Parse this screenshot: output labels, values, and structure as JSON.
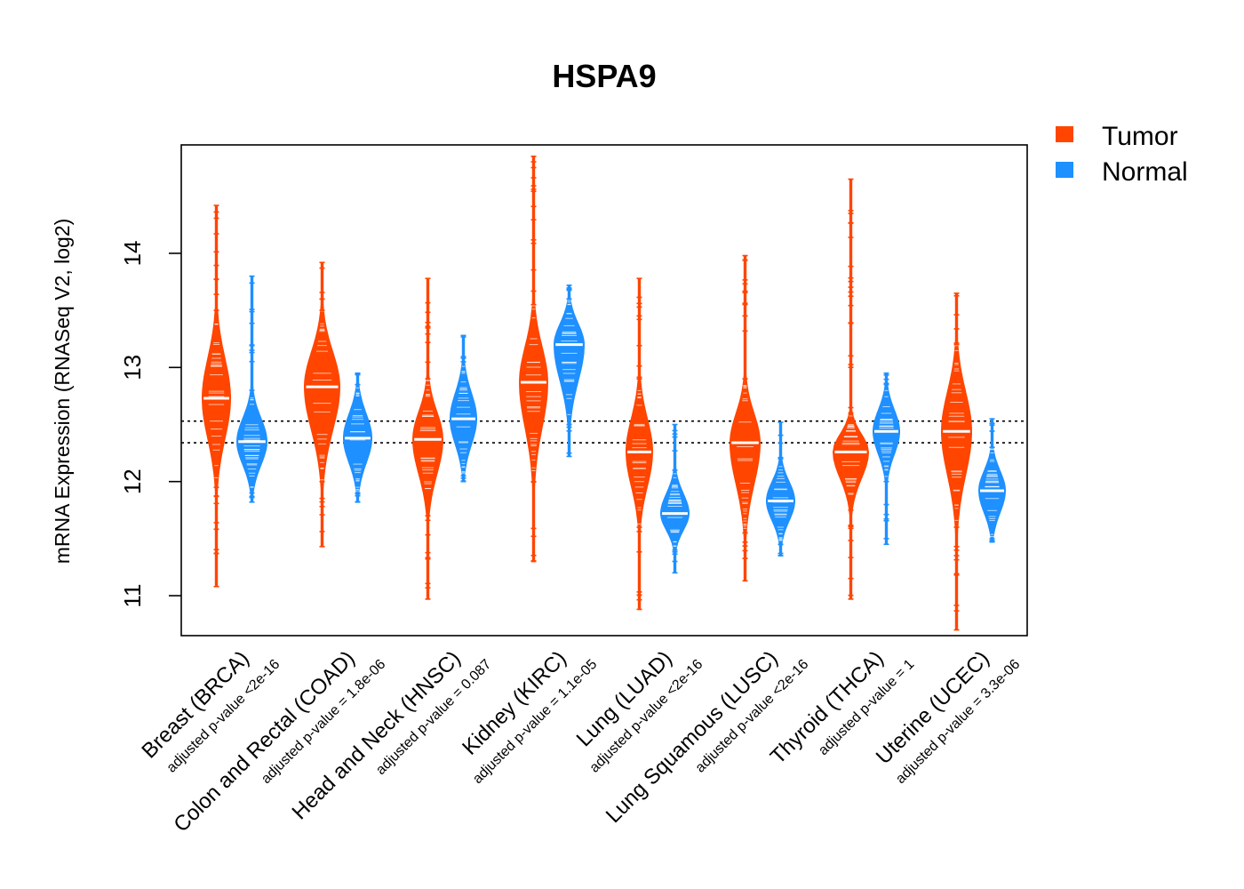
{
  "chart_data": {
    "type": "violin",
    "title": "HSPA9",
    "ylabel": "mRNA Expression (RNASeq V2, log2)",
    "xlabel": "",
    "ylim": [
      10.65,
      14.95
    ],
    "yticks": [
      11,
      12,
      13,
      14
    ],
    "reference_lines": [
      12.34,
      12.53
    ],
    "legend": {
      "position": "top-right",
      "entries": [
        {
          "name": "Tumor",
          "color": "#FF4500"
        },
        {
          "name": "Normal",
          "color": "#1E90FF"
        }
      ]
    },
    "groups": [
      {
        "label": "Breast (BRCA)",
        "pvalue": "adjusted p-value <2e-16",
        "tumor": {
          "median": 12.73,
          "bulk": [
            11.95,
            13.5
          ],
          "range": [
            11.08,
            14.42
          ],
          "width": 0.8
        },
        "normal": {
          "median": 12.35,
          "bulk": [
            11.9,
            12.8
          ],
          "range": [
            11.82,
            13.8
          ],
          "width": 0.85
        }
      },
      {
        "label": "Colon and Rectal (COAD)",
        "pvalue": "adjusted p-value = 1.8e-06",
        "tumor": {
          "median": 12.83,
          "bulk": [
            12.0,
            13.5
          ],
          "range": [
            11.43,
            13.92
          ],
          "width": 1.0
        },
        "normal": {
          "median": 12.38,
          "bulk": [
            11.9,
            12.85
          ],
          "range": [
            11.82,
            12.95
          ],
          "width": 0.8
        }
      },
      {
        "label": "Head and Neck (HNSC)",
        "pvalue": "adjusted p-value = 0.087",
        "tumor": {
          "median": 12.37,
          "bulk": [
            11.7,
            12.9
          ],
          "range": [
            10.97,
            13.78
          ],
          "width": 0.85
        },
        "normal": {
          "median": 12.55,
          "bulk": [
            12.05,
            13.05
          ],
          "range": [
            12.0,
            13.28
          ],
          "width": 0.75
        }
      },
      {
        "label": "Kidney (KIRC)",
        "pvalue": "adjusted p-value = 1.1e-05",
        "tumor": {
          "median": 12.87,
          "bulk": [
            12.0,
            13.55
          ],
          "range": [
            11.3,
            14.85
          ],
          "width": 0.8
        },
        "normal": {
          "median": 13.2,
          "bulk": [
            12.5,
            13.6
          ],
          "range": [
            12.22,
            13.72
          ],
          "width": 0.85
        }
      },
      {
        "label": "Lung (LUAD)",
        "pvalue": "adjusted p-value <2e-16",
        "tumor": {
          "median": 12.26,
          "bulk": [
            11.6,
            12.9
          ],
          "range": [
            10.88,
            13.78
          ],
          "width": 0.75
        },
        "normal": {
          "median": 11.72,
          "bulk": [
            11.4,
            12.1
          ],
          "range": [
            11.2,
            12.5
          ],
          "width": 0.8
        }
      },
      {
        "label": "Lung Squamous (LUSC)",
        "pvalue": "adjusted p-value <2e-16",
        "tumor": {
          "median": 12.34,
          "bulk": [
            11.55,
            12.9
          ],
          "range": [
            11.13,
            13.98
          ],
          "width": 0.85
        },
        "normal": {
          "median": 11.83,
          "bulk": [
            11.45,
            12.2
          ],
          "range": [
            11.35,
            12.52
          ],
          "width": 0.8
        }
      },
      {
        "label": "Thyroid (THCA)",
        "pvalue": "adjusted p-value = 1",
        "tumor": {
          "median": 12.26,
          "bulk": [
            11.75,
            12.6
          ],
          "range": [
            10.97,
            14.65
          ],
          "width": 1.0
        },
        "normal": {
          "median": 12.44,
          "bulk": [
            12.0,
            12.85
          ],
          "range": [
            11.45,
            12.95
          ],
          "width": 0.75
        }
      },
      {
        "label": "Uterine (UCEC)",
        "pvalue": "adjusted p-value = 3.3e-06",
        "tumor": {
          "median": 12.44,
          "bulk": [
            11.6,
            13.2
          ],
          "range": [
            10.7,
            13.65
          ],
          "width": 0.85
        },
        "normal": {
          "median": 11.92,
          "bulk": [
            11.5,
            12.3
          ],
          "range": [
            11.47,
            12.55
          ],
          "width": 0.75
        }
      }
    ]
  }
}
